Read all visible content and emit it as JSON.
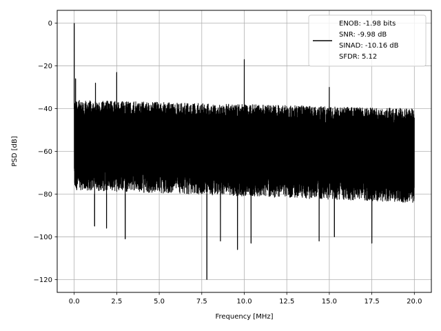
{
  "chart_data": {
    "type": "line",
    "title": "",
    "xlabel": "Frequency [MHz]",
    "ylabel": "PSD [dB]",
    "xlim": [
      -1.0,
      21.0
    ],
    "ylim": [
      -126,
      6
    ],
    "xticks": [
      0.0,
      2.5,
      5.0,
      7.5,
      10.0,
      12.5,
      15.0,
      17.5,
      20.0
    ],
    "xtick_labels": [
      "0.0",
      "2.5",
      "5.0",
      "7.5",
      "10.0",
      "12.5",
      "15.0",
      "17.5",
      "20.0"
    ],
    "yticks": [
      0,
      -20,
      -40,
      -60,
      -80,
      -100,
      -120
    ],
    "ytick_labels": [
      "0",
      "−20",
      "−40",
      "−60",
      "−80",
      "−100",
      "−120"
    ],
    "grid": true,
    "legend_position": "top-right",
    "series_color": "#000000",
    "noise_floor": {
      "upper_envelope_db": [
        -36,
        -40
      ],
      "lower_envelope_db": [
        -78,
        -84
      ],
      "typical_min_db": -95
    },
    "spurs": [
      {
        "x": 0.0,
        "y": 0
      },
      {
        "x": 0.08,
        "y": -26
      },
      {
        "x": 1.25,
        "y": -28
      },
      {
        "x": 2.5,
        "y": -23
      },
      {
        "x": 10.0,
        "y": -17
      },
      {
        "x": 15.0,
        "y": -30
      }
    ],
    "deep_nulls": [
      {
        "x": 1.2,
        "y": -95
      },
      {
        "x": 1.9,
        "y": -96
      },
      {
        "x": 3.0,
        "y": -101
      },
      {
        "x": 7.8,
        "y": -120
      },
      {
        "x": 8.6,
        "y": -102
      },
      {
        "x": 9.6,
        "y": -106
      },
      {
        "x": 10.4,
        "y": -103
      },
      {
        "x": 14.4,
        "y": -102
      },
      {
        "x": 15.3,
        "y": -100
      },
      {
        "x": 17.5,
        "y": -103
      }
    ],
    "legend": {
      "entries": [
        "ENOB: -1.98 bits",
        "SNR: -9.98 dB",
        "SINAD: -10.16 dB",
        "SFDR: 5.12"
      ]
    }
  }
}
